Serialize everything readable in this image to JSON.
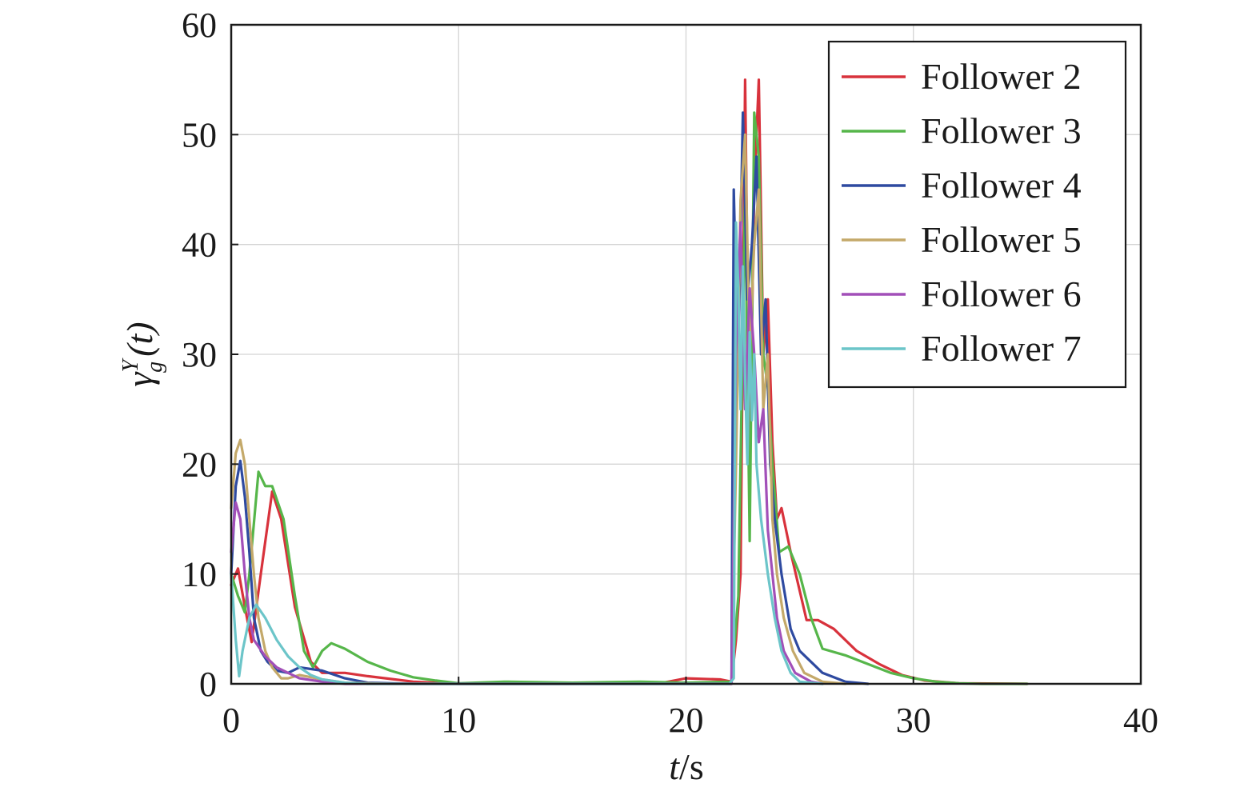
{
  "chart_data": {
    "type": "line",
    "xlabel": {
      "italic": "t",
      "rest": "/s"
    },
    "ylabel": {
      "symbol": "γ",
      "sup": "Y",
      "sub": "g",
      "arg": "(t)"
    },
    "xlim": [
      0,
      40
    ],
    "ylim": [
      0,
      60
    ],
    "xticks": [
      0,
      10,
      20,
      30,
      40
    ],
    "yticks": [
      0,
      10,
      20,
      30,
      40,
      50,
      60
    ],
    "xtick_labels": [
      "0",
      "10",
      "20",
      "30",
      "40"
    ],
    "ytick_labels": [
      "0",
      "10",
      "20",
      "30",
      "40",
      "50",
      "60"
    ],
    "grid": true,
    "legend_position": "top-right",
    "series": [
      {
        "name": "Follower 2",
        "color": "#d8323c",
        "points": [
          [
            0,
            9
          ],
          [
            0.3,
            10.5
          ],
          [
            0.6,
            7
          ],
          [
            0.9,
            3.8
          ],
          [
            1.3,
            10
          ],
          [
            1.8,
            17.5
          ],
          [
            2.2,
            15
          ],
          [
            2.8,
            7
          ],
          [
            3.5,
            2
          ],
          [
            4,
            1
          ],
          [
            5,
            1
          ],
          [
            6,
            0.7
          ],
          [
            8,
            0.2
          ],
          [
            10,
            0
          ],
          [
            15,
            0
          ],
          [
            19,
            0.1
          ],
          [
            20,
            0.5
          ],
          [
            21.5,
            0.4
          ],
          [
            22,
            0.2
          ],
          [
            22.2,
            4
          ],
          [
            22.4,
            10
          ],
          [
            22.6,
            55
          ],
          [
            22.8,
            20
          ],
          [
            23,
            45
          ],
          [
            23.2,
            55
          ],
          [
            23.4,
            30
          ],
          [
            23.6,
            35
          ],
          [
            23.8,
            22
          ],
          [
            24,
            15
          ],
          [
            24.2,
            16
          ],
          [
            24.6,
            12
          ],
          [
            25.3,
            5.8
          ],
          [
            25.8,
            5.8
          ],
          [
            26.5,
            5
          ],
          [
            27.5,
            3
          ],
          [
            28.5,
            1.8
          ],
          [
            29.5,
            0.8
          ],
          [
            30.5,
            0.3
          ],
          [
            32,
            0.05
          ],
          [
            35,
            0
          ]
        ]
      },
      {
        "name": "Follower 3",
        "color": "#56b64a",
        "points": [
          [
            0,
            10
          ],
          [
            0.3,
            8
          ],
          [
            0.6,
            6.5
          ],
          [
            0.8,
            10
          ],
          [
            1.2,
            19.3
          ],
          [
            1.5,
            18
          ],
          [
            1.8,
            18
          ],
          [
            2.3,
            15
          ],
          [
            2.8,
            8
          ],
          [
            3.2,
            3
          ],
          [
            3.6,
            1.5
          ],
          [
            4,
            3
          ],
          [
            4.4,
            3.7
          ],
          [
            5,
            3.2
          ],
          [
            6,
            2
          ],
          [
            7,
            1.2
          ],
          [
            8,
            0.6
          ],
          [
            9,
            0.3
          ],
          [
            10,
            0.05
          ],
          [
            12,
            0.2
          ],
          [
            15,
            0.1
          ],
          [
            18,
            0.2
          ],
          [
            20,
            0.1
          ],
          [
            22,
            0.2
          ],
          [
            22.3,
            8
          ],
          [
            22.6,
            45
          ],
          [
            22.8,
            13
          ],
          [
            23,
            52
          ],
          [
            23.2,
            48
          ],
          [
            23.4,
            30
          ],
          [
            23.6,
            27
          ],
          [
            23.8,
            20
          ],
          [
            24.1,
            12
          ],
          [
            24.5,
            12.5
          ],
          [
            25,
            10
          ],
          [
            25.5,
            6
          ],
          [
            26,
            3.2
          ],
          [
            27,
            2.6
          ],
          [
            28,
            1.8
          ],
          [
            29,
            1
          ],
          [
            30,
            0.5
          ],
          [
            31,
            0.2
          ],
          [
            32,
            0.05
          ],
          [
            33,
            0
          ],
          [
            35,
            0
          ]
        ]
      },
      {
        "name": "Follower 4",
        "color": "#2e4aa0",
        "points": [
          [
            0,
            10
          ],
          [
            0.2,
            18
          ],
          [
            0.4,
            20.3
          ],
          [
            0.6,
            17
          ],
          [
            0.8,
            12
          ],
          [
            1,
            6
          ],
          [
            1.3,
            3
          ],
          [
            1.6,
            2
          ],
          [
            2,
            1.2
          ],
          [
            2.5,
            1
          ],
          [
            3,
            1.5
          ],
          [
            4,
            1.2
          ],
          [
            5,
            0.5
          ],
          [
            6,
            0.1
          ],
          [
            8,
            0
          ],
          [
            22,
            0
          ],
          [
            22.1,
            45
          ],
          [
            22.2,
            36
          ],
          [
            22.3,
            30
          ],
          [
            22.5,
            52
          ],
          [
            22.7,
            35
          ],
          [
            22.9,
            40
          ],
          [
            23.1,
            48
          ],
          [
            23.3,
            30
          ],
          [
            23.5,
            35
          ],
          [
            23.7,
            20
          ],
          [
            23.9,
            15
          ],
          [
            24.2,
            10
          ],
          [
            24.6,
            5
          ],
          [
            25,
            3
          ],
          [
            26,
            1
          ],
          [
            27,
            0.2
          ],
          [
            28,
            0
          ]
        ]
      },
      {
        "name": "Follower 5",
        "color": "#c4a96a",
        "points": [
          [
            0,
            16
          ],
          [
            0.2,
            21
          ],
          [
            0.4,
            22.2
          ],
          [
            0.6,
            20
          ],
          [
            0.8,
            15
          ],
          [
            1,
            10
          ],
          [
            1.2,
            6
          ],
          [
            1.5,
            3
          ],
          [
            1.8,
            1.5
          ],
          [
            2.2,
            0.5
          ],
          [
            2.5,
            0.5
          ],
          [
            3,
            0.8
          ],
          [
            4,
            0.4
          ],
          [
            5,
            0.1
          ],
          [
            7,
            0
          ],
          [
            22,
            0
          ],
          [
            22.2,
            20
          ],
          [
            22.4,
            44
          ],
          [
            22.6,
            50
          ],
          [
            22.8,
            30
          ],
          [
            23,
            40
          ],
          [
            23.2,
            45
          ],
          [
            23.4,
            25
          ],
          [
            23.6,
            30
          ],
          [
            23.8,
            15
          ],
          [
            24,
            10
          ],
          [
            24.3,
            6
          ],
          [
            24.7,
            3
          ],
          [
            25.2,
            1
          ],
          [
            26,
            0.2
          ],
          [
            27,
            0
          ]
        ]
      },
      {
        "name": "Follower 6",
        "color": "#a24fb8",
        "points": [
          [
            0,
            12
          ],
          [
            0.2,
            16.5
          ],
          [
            0.4,
            15
          ],
          [
            0.6,
            10
          ],
          [
            0.8,
            6
          ],
          [
            1,
            4
          ],
          [
            1.5,
            2.5
          ],
          [
            2,
            1.5
          ],
          [
            2.5,
            1
          ],
          [
            3,
            0.5
          ],
          [
            4,
            0.2
          ],
          [
            5,
            0
          ],
          [
            22,
            0
          ],
          [
            22.2,
            30
          ],
          [
            22.4,
            42
          ],
          [
            22.6,
            25
          ],
          [
            22.8,
            36
          ],
          [
            23,
            30
          ],
          [
            23.2,
            22
          ],
          [
            23.4,
            25
          ],
          [
            23.6,
            14
          ],
          [
            23.8,
            10
          ],
          [
            24,
            6
          ],
          [
            24.3,
            3
          ],
          [
            24.8,
            1
          ],
          [
            25.5,
            0.2
          ],
          [
            26,
            0
          ]
        ]
      },
      {
        "name": "Follower 7",
        "color": "#6cc5c9",
        "points": [
          [
            0,
            10
          ],
          [
            0.2,
            4
          ],
          [
            0.35,
            0.7
          ],
          [
            0.5,
            3
          ],
          [
            0.8,
            6
          ],
          [
            1.1,
            7.2
          ],
          [
            1.5,
            6
          ],
          [
            2,
            4
          ],
          [
            2.5,
            2.5
          ],
          [
            3,
            1.5
          ],
          [
            3.5,
            0.8
          ],
          [
            4,
            0.4
          ],
          [
            5,
            0.1
          ],
          [
            6,
            0
          ],
          [
            21.9,
            0
          ],
          [
            22.1,
            0.5
          ],
          [
            22.2,
            42
          ],
          [
            22.3,
            36
          ],
          [
            22.4,
            25
          ],
          [
            22.5,
            38
          ],
          [
            22.6,
            28
          ],
          [
            22.7,
            20
          ],
          [
            22.8,
            32
          ],
          [
            22.9,
            24
          ],
          [
            23,
            30
          ],
          [
            23.1,
            20
          ],
          [
            23.3,
            15
          ],
          [
            23.6,
            10
          ],
          [
            23.9,
            6
          ],
          [
            24.2,
            3
          ],
          [
            24.6,
            1
          ],
          [
            25,
            0.2
          ],
          [
            26,
            0
          ]
        ]
      }
    ]
  }
}
